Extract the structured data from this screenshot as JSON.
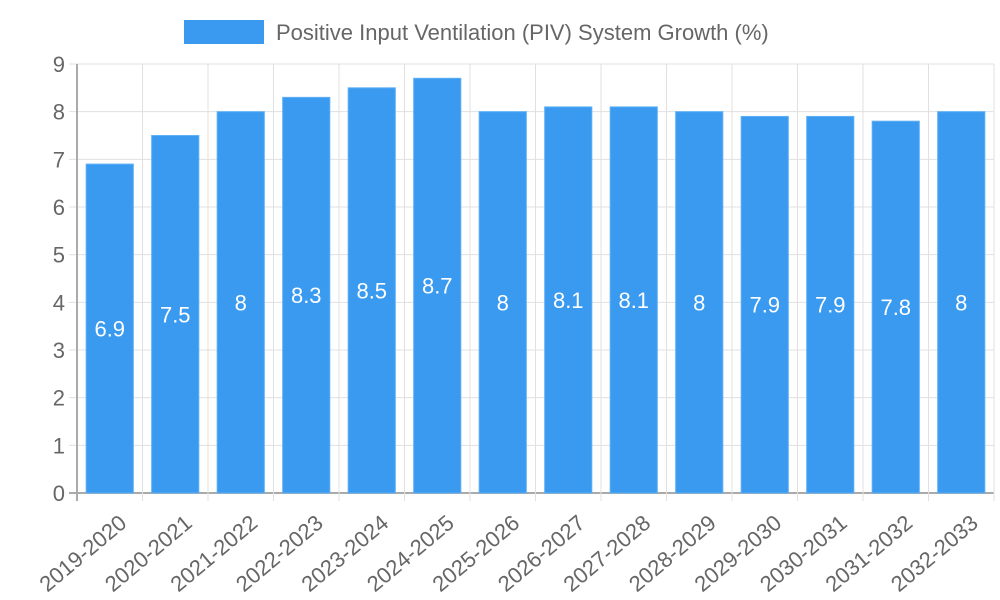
{
  "chart_data": {
    "type": "bar",
    "title": "",
    "legend": {
      "label": "Positive Input Ventilation (PIV) System Growth (%)",
      "position": "top"
    },
    "categories": [
      "2019-2020",
      "2020-2021",
      "2021-2022",
      "2022-2023",
      "2023-2024",
      "2024-2025",
      "2025-2026",
      "2026-2027",
      "2027-2028",
      "2028-2029",
      "2029-2030",
      "2030-2031",
      "2031-2032",
      "2032-2033"
    ],
    "series": [
      {
        "name": "Positive Input Ventilation (PIV) System Growth (%)",
        "values": [
          6.9,
          7.5,
          8,
          8.3,
          8.5,
          8.7,
          8,
          8.1,
          8.1,
          8,
          7.9,
          7.9,
          7.8,
          8
        ]
      }
    ],
    "y_ticks": [
      "0",
      "1",
      "2",
      "3",
      "4",
      "5",
      "6",
      "7",
      "8",
      "9"
    ],
    "ylim": [
      0,
      9
    ],
    "xlabel": "",
    "ylabel": "",
    "grid": true,
    "colors": {
      "bar": "#399af0",
      "bar_border": "#5fb0f5",
      "grid": "#e0e0e0",
      "axis": "#aaaaaa",
      "text": "#666666",
      "label": "#ffffff"
    }
  }
}
